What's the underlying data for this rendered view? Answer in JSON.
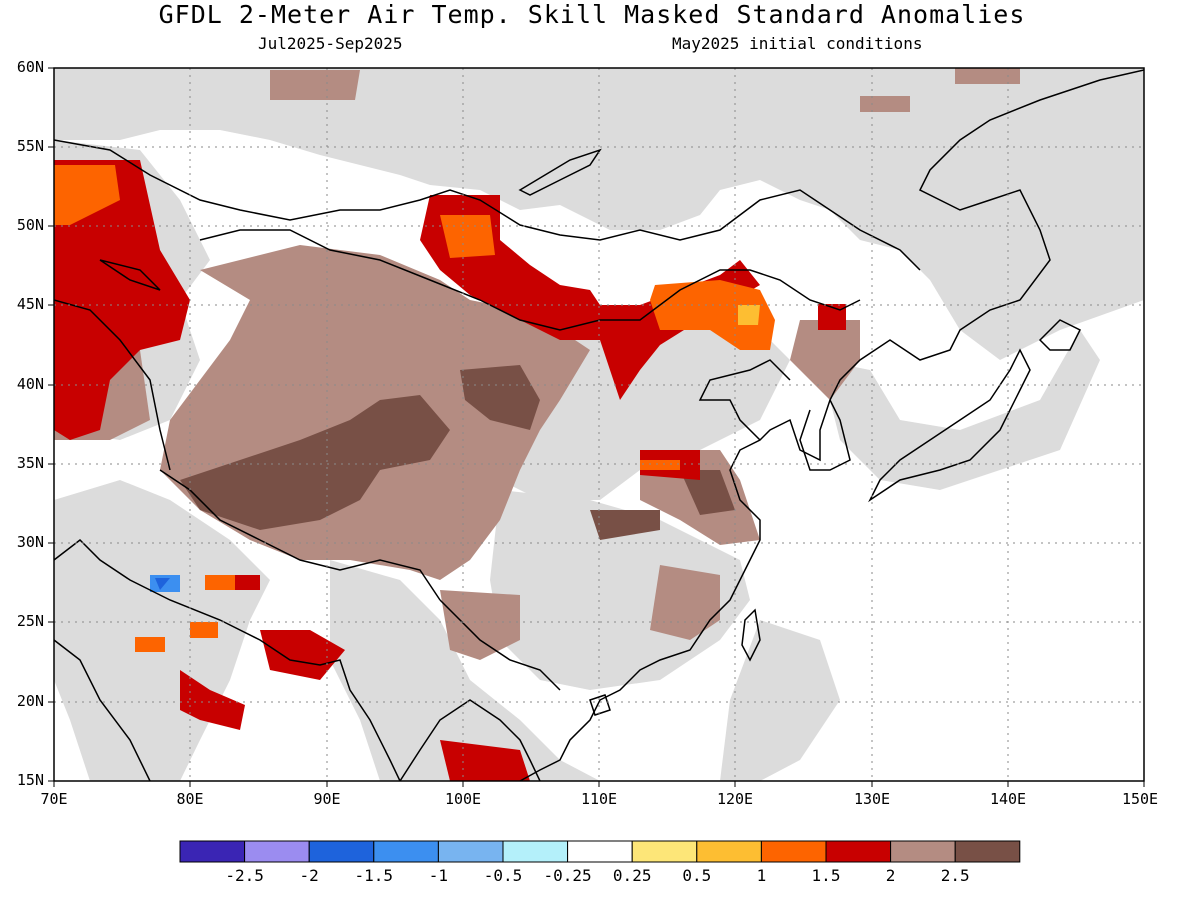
{
  "title": "GFDL 2-Meter Air Temp. Skill Masked Standard Anomalies",
  "valid_period": "Jul2025-Sep2025",
  "initial_conditions": "May2025 initial conditions",
  "lat_labels": [
    "60N",
    "55N",
    "50N",
    "45N",
    "40N",
    "35N",
    "30N",
    "25N",
    "20N",
    "15N"
  ],
  "lon_labels": [
    "70E",
    "80E",
    "90E",
    "100E",
    "110E",
    "120E",
    "130E",
    "140E",
    "150E"
  ],
  "colorbar": {
    "colors": [
      "#3a25b4",
      "#9b8cf0",
      "#1e63dc",
      "#3c8ff0",
      "#78b4f0",
      "#b4f0fa",
      "#ffffff",
      "#fde678",
      "#fdbe32",
      "#fd6400",
      "#c80000",
      "#b48c82",
      "#785046"
    ],
    "labels": [
      "-2.5",
      "-2",
      "-1.5",
      "-1",
      "-0.5",
      "-0.25",
      "0.25",
      "0.5",
      "1",
      "1.5",
      "2",
      "2.5"
    ]
  },
  "skill_mask_color": "#dcdcdc"
}
